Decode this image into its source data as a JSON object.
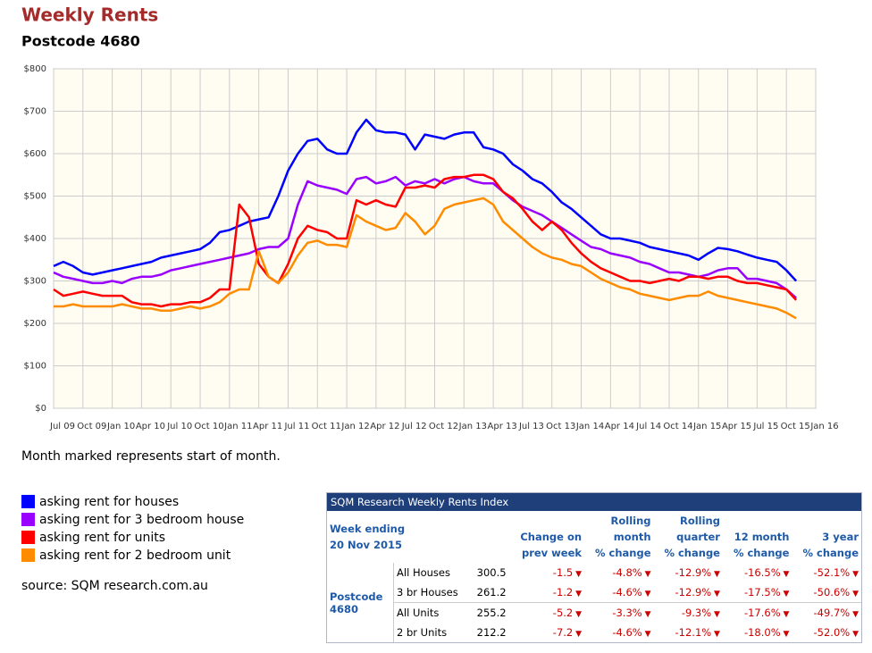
{
  "chart_data": {
    "type": "line",
    "title": "Weekly Rents",
    "subtitle": "Postcode 4680",
    "note": "Month marked represents start of month.",
    "source": "source: SQM research.com.au",
    "xlim": [
      "2009-07",
      "2016-01"
    ],
    "xticks": [
      {
        "value": "2009-07",
        "label": "Jul 09"
      },
      {
        "value": "2009-10",
        "label": "Oct 09"
      },
      {
        "value": "2010-01",
        "label": "Jan 10"
      },
      {
        "value": "2010-04",
        "label": "Apr 10"
      },
      {
        "value": "2010-07",
        "label": "Jul 10"
      },
      {
        "value": "2010-10",
        "label": "Oct 10"
      },
      {
        "value": "2011-01",
        "label": "Jan 11"
      },
      {
        "value": "2011-04",
        "label": "Apr 11"
      },
      {
        "value": "2011-07",
        "label": "Jul 11"
      },
      {
        "value": "2011-10",
        "label": "Oct 11"
      },
      {
        "value": "2012-01",
        "label": "Jan 12"
      },
      {
        "value": "2012-04",
        "label": "Apr 12"
      },
      {
        "value": "2012-07",
        "label": "Jul 12"
      },
      {
        "value": "2012-10",
        "label": "Oct 12"
      },
      {
        "value": "2013-01",
        "label": "Jan 13"
      },
      {
        "value": "2013-04",
        "label": "Apr 13"
      },
      {
        "value": "2013-07",
        "label": "Jul 13"
      },
      {
        "value": "2013-10",
        "label": "Oct 13"
      },
      {
        "value": "2014-01",
        "label": "Jan 14"
      },
      {
        "value": "2014-04",
        "label": "Apr 14"
      },
      {
        "value": "2014-07",
        "label": "Jul 14"
      },
      {
        "value": "2014-10",
        "label": "Oct 14"
      },
      {
        "value": "2015-01",
        "label": "Jan 15"
      },
      {
        "value": "2015-04",
        "label": "Apr 15"
      },
      {
        "value": "2015-07",
        "label": "Jul 15"
      },
      {
        "value": "2015-10",
        "label": "Oct 15"
      },
      {
        "value": "2016-01",
        "label": "Jan 16"
      }
    ],
    "ylim": [
      0,
      800
    ],
    "yticks": [
      {
        "value": 0,
        "label": "$0"
      },
      {
        "value": 100,
        "label": "$100"
      },
      {
        "value": 200,
        "label": "$200"
      },
      {
        "value": 300,
        "label": "$300"
      },
      {
        "value": 400,
        "label": "$400"
      },
      {
        "value": 500,
        "label": "$500"
      },
      {
        "value": 600,
        "label": "$600"
      },
      {
        "value": 700,
        "label": "$700"
      },
      {
        "value": 800,
        "label": "$800"
      }
    ],
    "grid": true,
    "x": [
      "2009-07",
      "2009-08",
      "2009-09",
      "2009-10",
      "2009-11",
      "2009-12",
      "2010-01",
      "2010-02",
      "2010-03",
      "2010-04",
      "2010-05",
      "2010-06",
      "2010-07",
      "2010-08",
      "2010-09",
      "2010-10",
      "2010-11",
      "2010-12",
      "2011-01",
      "2011-02",
      "2011-03",
      "2011-04",
      "2011-05",
      "2011-06",
      "2011-07",
      "2011-08",
      "2011-09",
      "2011-10",
      "2011-11",
      "2011-12",
      "2012-01",
      "2012-02",
      "2012-03",
      "2012-04",
      "2012-05",
      "2012-06",
      "2012-07",
      "2012-08",
      "2012-09",
      "2012-10",
      "2012-11",
      "2012-12",
      "2013-01",
      "2013-02",
      "2013-03",
      "2013-04",
      "2013-05",
      "2013-06",
      "2013-07",
      "2013-08",
      "2013-09",
      "2013-10",
      "2013-11",
      "2013-12",
      "2014-01",
      "2014-02",
      "2014-03",
      "2014-04",
      "2014-05",
      "2014-06",
      "2014-07",
      "2014-08",
      "2014-09",
      "2014-10",
      "2014-11",
      "2014-12",
      "2015-01",
      "2015-02",
      "2015-03",
      "2015-04",
      "2015-05",
      "2015-06",
      "2015-07",
      "2015-08",
      "2015-09",
      "2015-10",
      "2015-11"
    ],
    "series": [
      {
        "name": "asking rent for houses",
        "color": "#0000ff",
        "values": [
          335,
          345,
          335,
          320,
          315,
          320,
          325,
          330,
          335,
          340,
          345,
          355,
          360,
          365,
          370,
          375,
          390,
          415,
          420,
          430,
          440,
          445,
          450,
          500,
          560,
          600,
          630,
          635,
          610,
          600,
          600,
          650,
          680,
          655,
          650,
          650,
          645,
          610,
          645,
          640,
          635,
          645,
          650,
          650,
          615,
          610,
          600,
          575,
          560,
          540,
          530,
          510,
          485,
          470,
          450,
          430,
          410,
          400,
          400,
          395,
          390,
          380,
          375,
          370,
          365,
          360,
          350,
          365,
          378,
          375,
          370,
          362,
          355,
          350,
          345,
          325,
          300
        ]
      },
      {
        "name": "asking rent for 3 bedroom house",
        "color": "#9900ff",
        "values": [
          320,
          310,
          305,
          300,
          295,
          295,
          300,
          295,
          305,
          310,
          310,
          315,
          325,
          330,
          335,
          340,
          345,
          350,
          355,
          360,
          365,
          375,
          380,
          380,
          400,
          480,
          535,
          525,
          520,
          515,
          505,
          540,
          545,
          530,
          535,
          545,
          525,
          535,
          530,
          540,
          530,
          540,
          545,
          535,
          530,
          530,
          510,
          490,
          475,
          465,
          455,
          440,
          425,
          410,
          395,
          380,
          375,
          365,
          360,
          355,
          345,
          340,
          330,
          320,
          320,
          315,
          310,
          315,
          325,
          330,
          330,
          305,
          305,
          300,
          295,
          280,
          260
        ]
      },
      {
        "name": "asking rent for units",
        "color": "#ff0000",
        "values": [
          280,
          265,
          270,
          275,
          270,
          265,
          265,
          265,
          250,
          245,
          245,
          240,
          245,
          245,
          250,
          250,
          260,
          280,
          280,
          480,
          450,
          340,
          310,
          295,
          340,
          400,
          430,
          420,
          415,
          400,
          400,
          490,
          480,
          490,
          480,
          475,
          520,
          520,
          525,
          520,
          540,
          545,
          545,
          550,
          550,
          540,
          510,
          495,
          470,
          440,
          420,
          440,
          420,
          390,
          365,
          345,
          330,
          320,
          310,
          300,
          300,
          295,
          300,
          305,
          300,
          310,
          310,
          305,
          310,
          310,
          300,
          295,
          295,
          290,
          285,
          280,
          255
        ]
      },
      {
        "name": "asking rent for 2 bedroom unit",
        "color": "#ff8c00",
        "values": [
          240,
          240,
          245,
          240,
          240,
          240,
          240,
          245,
          240,
          235,
          235,
          230,
          230,
          235,
          240,
          235,
          240,
          250,
          270,
          280,
          280,
          370,
          310,
          295,
          320,
          360,
          390,
          395,
          385,
          385,
          380,
          455,
          440,
          430,
          420,
          425,
          460,
          440,
          410,
          430,
          470,
          480,
          485,
          490,
          495,
          480,
          440,
          420,
          400,
          380,
          365,
          355,
          350,
          340,
          335,
          320,
          305,
          295,
          285,
          280,
          270,
          265,
          260,
          255,
          260,
          265,
          265,
          275,
          265,
          260,
          255,
          250,
          245,
          240,
          235,
          225,
          212
        ]
      }
    ]
  },
  "table": {
    "title": "SQM Research Weekly Rents Index",
    "week_label": "Week ending",
    "week_date": "20 Nov 2015",
    "columns": [
      "Change on\nprev week",
      "Rolling\nmonth\n% change",
      "Rolling\nquarter\n% change",
      "12 month\n% change",
      "3 year\n% change"
    ],
    "group": "Postcode\n4680",
    "rows": [
      [
        "All Houses",
        "300.5",
        "-1.5",
        "-4.8%",
        "-12.9%",
        "-16.5%",
        "-52.1%"
      ],
      [
        "3 br Houses",
        "261.2",
        "-1.2",
        "-4.6%",
        "-12.9%",
        "-17.5%",
        "-50.6%"
      ],
      [
        "All Units",
        "255.2",
        "-5.2",
        "-3.3%",
        "-9.3%",
        "-17.6%",
        "-49.7%"
      ],
      [
        "2 br Units",
        "212.2",
        "-7.2",
        "-4.6%",
        "-12.1%",
        "-18.0%",
        "-52.0%"
      ]
    ]
  }
}
